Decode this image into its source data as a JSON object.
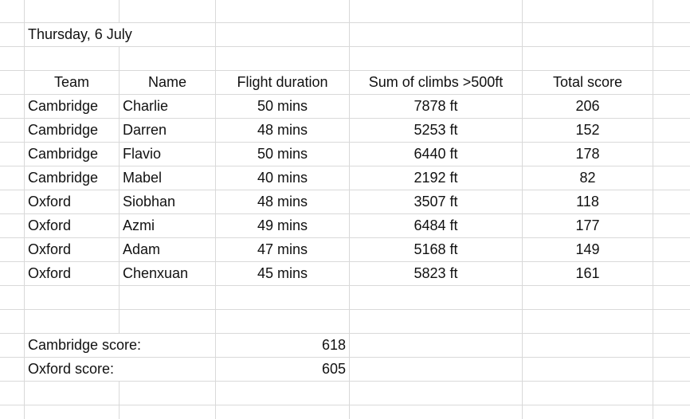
{
  "date": "Thursday, 6 July",
  "headers": {
    "team": "Team",
    "name": "Name",
    "flight_duration": "Flight duration",
    "sum_climbs": "Sum of climbs >500ft",
    "total_score": "Total score"
  },
  "rows": [
    {
      "team": "Cambridge",
      "name": "Charlie",
      "duration": "50 mins",
      "climbs": "7878 ft",
      "score": "206"
    },
    {
      "team": "Cambridge",
      "name": "Darren",
      "duration": "48 mins",
      "climbs": "5253 ft",
      "score": "152"
    },
    {
      "team": "Cambridge",
      "name": "Flavio",
      "duration": "50 mins",
      "climbs": "6440 ft",
      "score": "178"
    },
    {
      "team": "Cambridge",
      "name": "Mabel",
      "duration": "40 mins",
      "climbs": "2192 ft",
      "score": "82"
    },
    {
      "team": "Oxford",
      "name": "Siobhan",
      "duration": "48 mins",
      "climbs": "3507 ft",
      "score": "118"
    },
    {
      "team": "Oxford",
      "name": "Azmi",
      "duration": "49 mins",
      "climbs": "6484 ft",
      "score": "177"
    },
    {
      "team": "Oxford",
      "name": "Adam",
      "duration": "47 mins",
      "climbs": "5168 ft",
      "score": "149"
    },
    {
      "team": "Oxford",
      "name": "Chenxuan",
      "duration": "45 mins",
      "climbs": "5823 ft",
      "score": "161"
    }
  ],
  "summary": {
    "cambridge_label": "Cambridge score:",
    "cambridge_value": "618",
    "oxford_label": "Oxford score:",
    "oxford_value": "605"
  }
}
